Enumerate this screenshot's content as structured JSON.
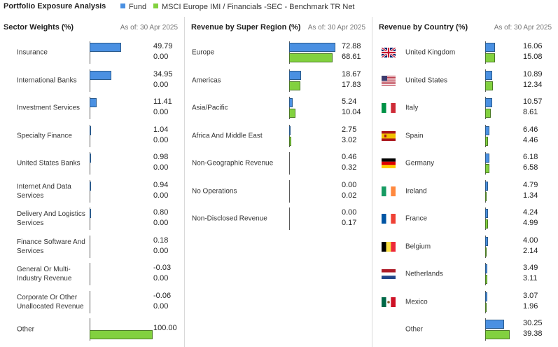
{
  "header": {
    "title": "Portfolio Exposure Analysis",
    "legend": [
      {
        "label": "Fund",
        "color": "#4a90e2"
      },
      {
        "label": "MSCI Europe IMI / Financials -SEC - Benchmark TR Net",
        "color": "#82d13f"
      }
    ]
  },
  "chart_data": [
    {
      "type": "bar",
      "title": "Sector Weights (%)",
      "as_of": "As of: 30 Apr 2025",
      "categories": [
        "Insurance",
        "International Banks",
        "Investment Services",
        "Specialty Finance",
        "United States Banks",
        "Internet And Data Services",
        "Delivery And Logistics Services",
        "Finance Software And Services",
        "General Or Multi-Industry Revenue",
        "Corporate Or Other Unallocated Revenue",
        "Other"
      ],
      "series": [
        {
          "name": "Fund",
          "values": [
            49.79,
            34.95,
            11.41,
            1.04,
            0.98,
            0.94,
            0.8,
            0.18,
            -0.03,
            -0.06,
            null
          ]
        },
        {
          "name": "MSCI Europe IMI / Financials -SEC - Benchmark TR Net",
          "values": [
            0.0,
            0.0,
            0.0,
            0.0,
            0.0,
            0.0,
            0.0,
            0.0,
            0.0,
            0.0,
            100.0
          ]
        }
      ]
    },
    {
      "type": "bar",
      "title": "Revenue by Super Region (%)",
      "as_of": "As of: 30 Apr 2025",
      "categories": [
        "Europe",
        "Americas",
        "Asia/Pacific",
        "Africa And Middle East",
        "Non-Geographic Revenue",
        "No Operations",
        "Non-Disclosed Revenue"
      ],
      "series": [
        {
          "name": "Fund",
          "values": [
            72.88,
            18.67,
            5.24,
            2.75,
            0.46,
            0.0,
            0.0
          ]
        },
        {
          "name": "MSCI Europe IMI / Financials -SEC - Benchmark TR Net",
          "values": [
            68.61,
            17.83,
            10.04,
            3.02,
            0.32,
            0.02,
            0.17
          ]
        }
      ]
    },
    {
      "type": "bar",
      "title": "Revenue by Country (%)",
      "as_of": "As of: 30 Apr 2025",
      "categories": [
        "United Kingdom",
        "United States",
        "Italy",
        "Spain",
        "Germany",
        "Ireland",
        "France",
        "Belgium",
        "Netherlands",
        "Mexico",
        "Other"
      ],
      "flags": [
        "uk",
        "us",
        "it",
        "es",
        "de",
        "ie",
        "fr",
        "be",
        "nl",
        "mx",
        ""
      ],
      "series": [
        {
          "name": "Fund",
          "values": [
            16.06,
            10.89,
            10.57,
            6.46,
            6.18,
            4.79,
            4.24,
            4.0,
            3.49,
            3.07,
            30.25
          ]
        },
        {
          "name": "MSCI Europe IMI / Financials -SEC - Benchmark TR Net",
          "values": [
            15.08,
            12.34,
            8.61,
            4.46,
            6.58,
            1.34,
            4.99,
            2.14,
            3.11,
            1.96,
            39.38
          ]
        }
      ]
    }
  ]
}
